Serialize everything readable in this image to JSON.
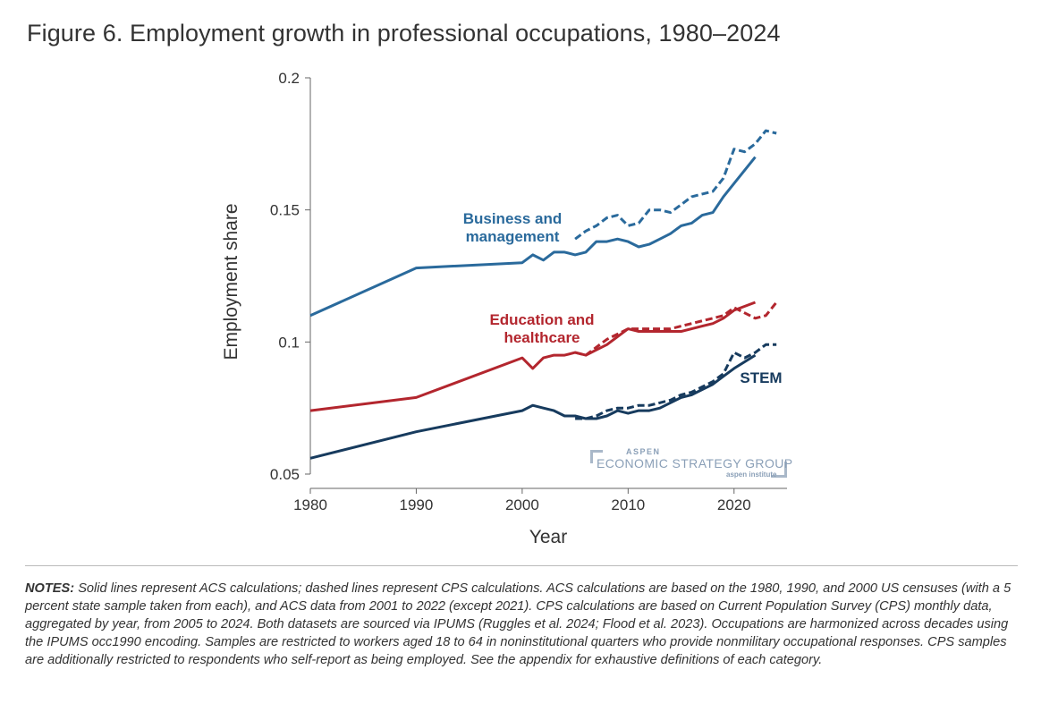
{
  "title": "Figure 6. Employment growth in professional occupations, 1980–2024",
  "notes_label": "NOTES:",
  "notes_text": "Solid lines represent ACS calculations; dashed lines represent CPS calculations. ACS calculations are based on the 1980, 1990, and 2000 US censuses (with a 5 percent state sample taken from each), and ACS data from 2001 to 2022 (except 2021). CPS calculations are based on Current Population Survey (CPS) monthly data, aggregated by year, from 2005 to 2024. Both datasets are sourced via IPUMS (Ruggles et al. 2024; Flood et al. 2023). Occupations are harmonized across decades using the IPUMS occ1990 encoding. Samples are restricted to workers aged 18 to 64 in noninstitutional quarters who provide nonmilitary occupational responses. CPS samples are additionally restricted to respondents who self-report as being employed. See the appendix for exhaustive definitions of each category.",
  "watermark": {
    "line1": "ASPEN",
    "line2": "ECONOMIC STRATEGY GROUP",
    "line3": "aspen institute"
  },
  "chart_data": {
    "type": "line",
    "xlabel": "Year",
    "ylabel": "Employment share",
    "xlim": [
      1980,
      2025
    ],
    "ylim": [
      0.05,
      0.2
    ],
    "xticks": [
      1980,
      1990,
      2000,
      2010,
      2020
    ],
    "yticks": [
      0.05,
      0.1,
      0.15,
      0.2
    ],
    "ytick_labels": [
      "0.05",
      "0.1",
      "0.15",
      "0.2"
    ],
    "grid": false,
    "legend": "direct labels",
    "series": [
      {
        "name": "Business and management",
        "label_lines": [
          "Business and",
          "management"
        ],
        "color": "#2a6a9c",
        "style": "solid",
        "source": "ACS",
        "x": [
          1980,
          1990,
          2000,
          2001,
          2002,
          2003,
          2004,
          2005,
          2006,
          2007,
          2008,
          2009,
          2010,
          2011,
          2012,
          2013,
          2014,
          2015,
          2016,
          2017,
          2018,
          2019,
          2020,
          2022
        ],
        "y": [
          0.11,
          0.128,
          0.13,
          0.133,
          0.131,
          0.134,
          0.134,
          0.133,
          0.134,
          0.138,
          0.138,
          0.139,
          0.138,
          0.136,
          0.137,
          0.139,
          0.141,
          0.144,
          0.145,
          0.148,
          0.149,
          0.155,
          0.16,
          0.17
        ]
      },
      {
        "name": "Business and management (CPS)",
        "color": "#2a6a9c",
        "style": "dashed",
        "source": "CPS",
        "x": [
          2005,
          2006,
          2007,
          2008,
          2009,
          2010,
          2011,
          2012,
          2013,
          2014,
          2015,
          2016,
          2017,
          2018,
          2019,
          2020,
          2021,
          2022,
          2023,
          2024
        ],
        "y": [
          0.139,
          0.142,
          0.144,
          0.147,
          0.148,
          0.144,
          0.145,
          0.15,
          0.15,
          0.149,
          0.152,
          0.155,
          0.156,
          0.157,
          0.162,
          0.173,
          0.172,
          0.175,
          0.18,
          0.179
        ]
      },
      {
        "name": "Education and healthcare",
        "label_lines": [
          "Education and",
          "healthcare"
        ],
        "color": "#b3262e",
        "style": "solid",
        "source": "ACS",
        "x": [
          1980,
          1990,
          2000,
          2001,
          2002,
          2003,
          2004,
          2005,
          2006,
          2007,
          2008,
          2009,
          2010,
          2011,
          2012,
          2013,
          2014,
          2015,
          2016,
          2017,
          2018,
          2019,
          2020,
          2022
        ],
        "y": [
          0.074,
          0.079,
          0.094,
          0.09,
          0.094,
          0.095,
          0.095,
          0.096,
          0.095,
          0.097,
          0.099,
          0.102,
          0.105,
          0.104,
          0.104,
          0.104,
          0.104,
          0.104,
          0.105,
          0.106,
          0.107,
          0.109,
          0.112,
          0.115
        ]
      },
      {
        "name": "Education and healthcare (CPS)",
        "color": "#b3262e",
        "style": "dashed",
        "source": "CPS",
        "x": [
          2005,
          2006,
          2007,
          2008,
          2009,
          2010,
          2011,
          2012,
          2013,
          2014,
          2015,
          2016,
          2017,
          2018,
          2019,
          2020,
          2021,
          2022,
          2023,
          2024
        ],
        "y": [
          0.096,
          0.095,
          0.098,
          0.101,
          0.103,
          0.105,
          0.105,
          0.105,
          0.105,
          0.105,
          0.106,
          0.107,
          0.108,
          0.109,
          0.11,
          0.113,
          0.111,
          0.109,
          0.11,
          0.115
        ]
      },
      {
        "name": "STEM",
        "label_lines": [
          "STEM"
        ],
        "color": "#173b5e",
        "style": "solid",
        "source": "ACS",
        "x": [
          1980,
          1990,
          2000,
          2001,
          2002,
          2003,
          2004,
          2005,
          2006,
          2007,
          2008,
          2009,
          2010,
          2011,
          2012,
          2013,
          2014,
          2015,
          2016,
          2017,
          2018,
          2019,
          2020,
          2022
        ],
        "y": [
          0.056,
          0.066,
          0.074,
          0.076,
          0.075,
          0.074,
          0.072,
          0.072,
          0.071,
          0.071,
          0.072,
          0.074,
          0.073,
          0.074,
          0.074,
          0.075,
          0.077,
          0.079,
          0.08,
          0.082,
          0.084,
          0.087,
          0.09,
          0.095
        ]
      },
      {
        "name": "STEM (CPS)",
        "color": "#173b5e",
        "style": "dashed",
        "source": "CPS",
        "x": [
          2005,
          2006,
          2007,
          2008,
          2009,
          2010,
          2011,
          2012,
          2013,
          2014,
          2015,
          2016,
          2017,
          2018,
          2019,
          2020,
          2021,
          2022,
          2023,
          2024
        ],
        "y": [
          0.071,
          0.071,
          0.072,
          0.074,
          0.075,
          0.075,
          0.076,
          0.076,
          0.077,
          0.078,
          0.08,
          0.081,
          0.083,
          0.085,
          0.088,
          0.096,
          0.094,
          0.096,
          0.099,
          0.099
        ]
      }
    ]
  }
}
